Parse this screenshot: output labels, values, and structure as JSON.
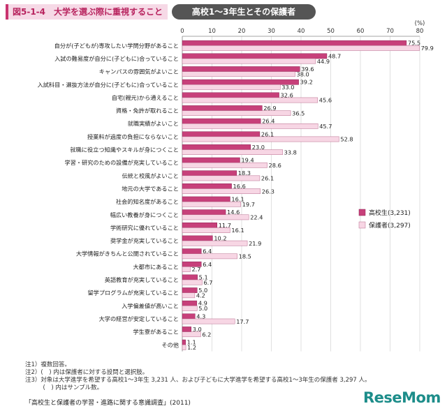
{
  "header": {
    "figure_label": "図5-1-4　大学を選ぶ際に重視すること",
    "subtitle": "高校1～3年生とその保護者"
  },
  "chart_data": {
    "type": "bar",
    "orientation": "horizontal",
    "unit_label": "(%)",
    "xlim": [
      0,
      80
    ],
    "xticks": [
      0,
      10,
      20,
      30,
      40,
      50,
      60,
      70,
      80
    ],
    "grid": true,
    "legend_position": "right",
    "categories": [
      "自分が(子どもが)専攻したい学問分野があること",
      "入試の難易度が自分に(子どもに)合っていること",
      "キャンパスの雰囲気がよいこと",
      "入試科目・選抜方法が自分に(子どもに)合っていること",
      "自宅(親元)から通えること",
      "資格・免許が取れること",
      "就職実績がよいこと",
      "授業料が過度の負担にならないこと",
      "就職に役立つ知識やスキルが身につくこと",
      "学習・研究のための設備が充実していること",
      "伝統と校風がよいこと",
      "地元の大学であること",
      "社会的知名度があること",
      "幅広い教養が身につくこと",
      "学術研究に優れていること",
      "奨学金が充実していること",
      "大学情報がきちんと公開されていること",
      "大都市にあること",
      "英語教育が充実していること",
      "留学プログラムが充実していること",
      "入学偏差値が高いこと",
      "大学の経営が安定していること",
      "学生寮があること",
      "その他"
    ],
    "series": [
      {
        "name": "高校生(3,231)",
        "color": "#c7407a",
        "values": [
          75.5,
          48.7,
          39.6,
          39.2,
          32.6,
          26.9,
          26.4,
          26.1,
          23.0,
          19.4,
          18.3,
          16.6,
          16.1,
          14.6,
          11.7,
          10.2,
          6.4,
          6.4,
          5.1,
          5.0,
          4.9,
          4.3,
          3.0,
          1.1
        ]
      },
      {
        "name": "保護者(3,297)",
        "color": "#f7d6e4",
        "values": [
          79.9,
          44.9,
          38.0,
          33.0,
          45.6,
          36.5,
          45.7,
          52.8,
          33.8,
          28.6,
          26.1,
          26.3,
          19.7,
          22.4,
          16.1,
          21.9,
          18.5,
          2.7,
          6.7,
          4.2,
          5.0,
          17.7,
          6.2,
          1.2
        ]
      }
    ]
  },
  "notes": [
    "注1）複数回答。",
    "注2）(　) 内は保護者に対する設問と選択肢。",
    "注3）対象は大学進学を希望する高校1～3年生 3,231 人、および子どもに大学進学を希望する高校1～3年生の保護者 3,297 人。",
    "　　　(　) 内はサンプル数。"
  ],
  "source": "「高校生と保護者の学習・進路に関する意識調査」(2011)",
  "logo": "ReseMom"
}
